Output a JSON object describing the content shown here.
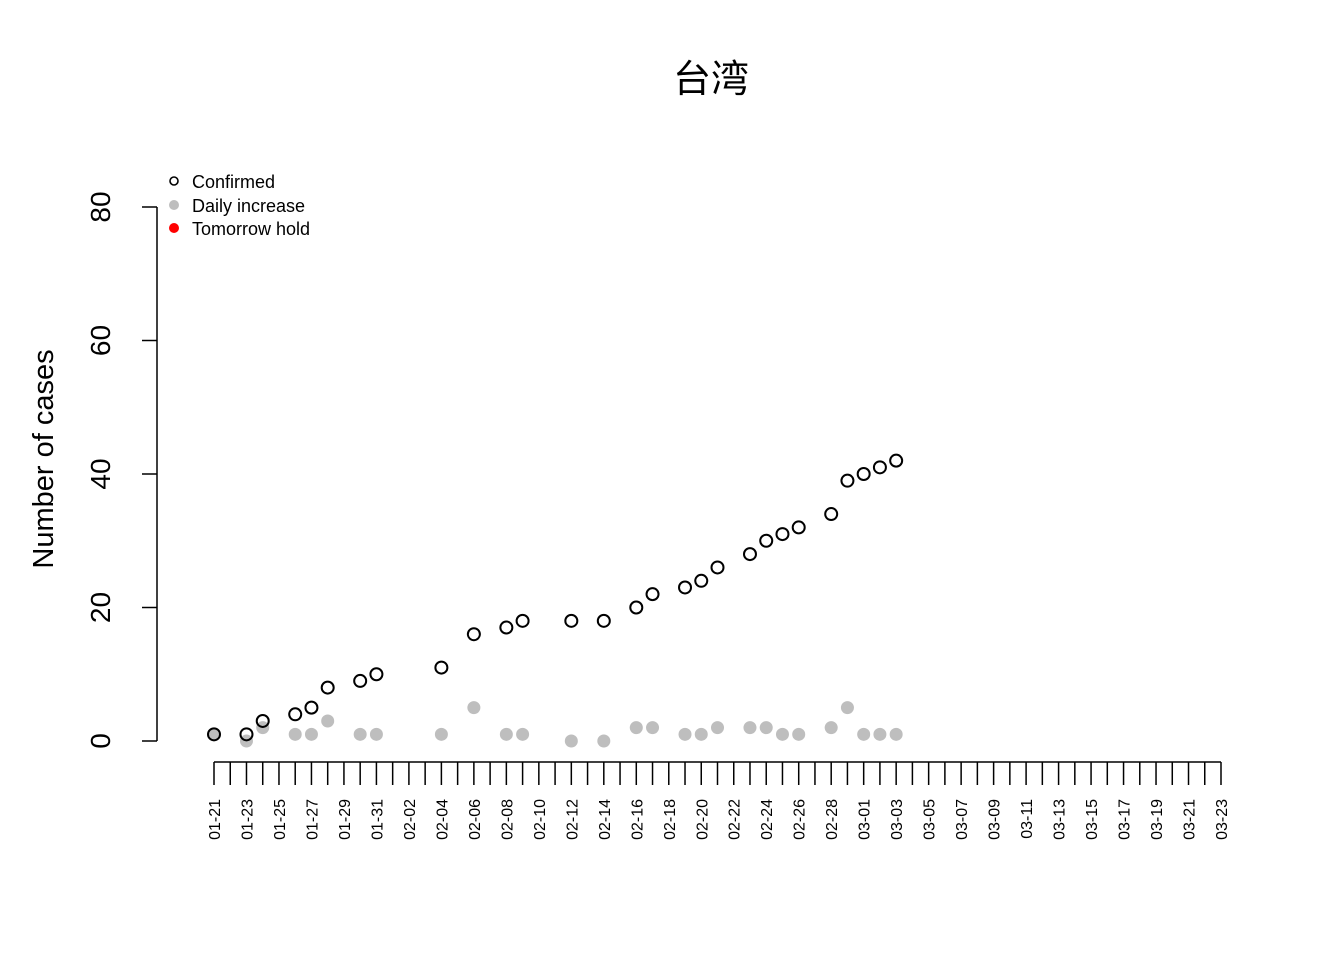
{
  "chart_data": {
    "type": "scatter",
    "title": "台湾",
    "ylabel": "Number of cases",
    "xlabel": "",
    "ylim": [
      0,
      80
    ],
    "yticks": [
      0,
      20,
      40,
      60,
      80
    ],
    "x_dates": [
      "01-21",
      "01-22",
      "01-23",
      "01-24",
      "01-25",
      "01-26",
      "01-27",
      "01-28",
      "01-29",
      "01-30",
      "01-31",
      "02-01",
      "02-02",
      "02-03",
      "02-04",
      "02-05",
      "02-06",
      "02-07",
      "02-08",
      "02-09",
      "02-10",
      "02-11",
      "02-12",
      "02-13",
      "02-14",
      "02-15",
      "02-16",
      "02-17",
      "02-18",
      "02-19",
      "02-20",
      "02-21",
      "02-22",
      "02-23",
      "02-24",
      "02-25",
      "02-26",
      "02-27",
      "02-28",
      "02-29",
      "03-01",
      "03-02",
      "03-03",
      "03-04",
      "03-05",
      "03-06",
      "03-07",
      "03-08",
      "03-09",
      "03-10",
      "03-11",
      "03-12",
      "03-13",
      "03-14",
      "03-15",
      "03-16",
      "03-17",
      "03-18",
      "03-19",
      "03-20",
      "03-21",
      "03-22",
      "03-23"
    ],
    "x_tick_labels": [
      "01-21",
      "01-23",
      "01-25",
      "01-27",
      "01-29",
      "01-31",
      "02-02",
      "02-04",
      "02-06",
      "02-08",
      "02-10",
      "02-12",
      "02-14",
      "02-16",
      "02-18",
      "02-20",
      "02-22",
      "02-24",
      "02-26",
      "02-28",
      "03-01",
      "03-03",
      "03-05",
      "03-07",
      "03-09",
      "03-11",
      "03-13",
      "03-15",
      "03-17",
      "03-19",
      "03-21",
      "03-23"
    ],
    "legend_position": "top-left",
    "series": [
      {
        "name": "Confirmed",
        "style": "open-circle",
        "color": "#000000",
        "points": [
          {
            "date": "01-21",
            "value": 1
          },
          {
            "date": "01-23",
            "value": 1
          },
          {
            "date": "01-24",
            "value": 3
          },
          {
            "date": "01-26",
            "value": 4
          },
          {
            "date": "01-27",
            "value": 5
          },
          {
            "date": "01-28",
            "value": 8
          },
          {
            "date": "01-30",
            "value": 9
          },
          {
            "date": "01-31",
            "value": 10
          },
          {
            "date": "02-04",
            "value": 11
          },
          {
            "date": "02-06",
            "value": 16
          },
          {
            "date": "02-08",
            "value": 17
          },
          {
            "date": "02-09",
            "value": 18
          },
          {
            "date": "02-12",
            "value": 18
          },
          {
            "date": "02-14",
            "value": 18
          },
          {
            "date": "02-16",
            "value": 20
          },
          {
            "date": "02-17",
            "value": 22
          },
          {
            "date": "02-19",
            "value": 23
          },
          {
            "date": "02-20",
            "value": 24
          },
          {
            "date": "02-21",
            "value": 26
          },
          {
            "date": "02-23",
            "value": 28
          },
          {
            "date": "02-24",
            "value": 30
          },
          {
            "date": "02-25",
            "value": 31
          },
          {
            "date": "02-26",
            "value": 32
          },
          {
            "date": "02-28",
            "value": 34
          },
          {
            "date": "02-29",
            "value": 39
          },
          {
            "date": "03-01",
            "value": 40
          },
          {
            "date": "03-02",
            "value": 41
          },
          {
            "date": "03-03",
            "value": 42
          }
        ]
      },
      {
        "name": "Daily increase",
        "style": "filled-circle",
        "color": "#bebebe",
        "points": [
          {
            "date": "01-21",
            "value": 1
          },
          {
            "date": "01-23",
            "value": 0
          },
          {
            "date": "01-24",
            "value": 2
          },
          {
            "date": "01-26",
            "value": 1
          },
          {
            "date": "01-27",
            "value": 1
          },
          {
            "date": "01-28",
            "value": 3
          },
          {
            "date": "01-30",
            "value": 1
          },
          {
            "date": "01-31",
            "value": 1
          },
          {
            "date": "02-04",
            "value": 1
          },
          {
            "date": "02-06",
            "value": 5
          },
          {
            "date": "02-08",
            "value": 1
          },
          {
            "date": "02-09",
            "value": 1
          },
          {
            "date": "02-12",
            "value": 0
          },
          {
            "date": "02-14",
            "value": 0
          },
          {
            "date": "02-16",
            "value": 2
          },
          {
            "date": "02-17",
            "value": 2
          },
          {
            "date": "02-19",
            "value": 1
          },
          {
            "date": "02-20",
            "value": 1
          },
          {
            "date": "02-21",
            "value": 2
          },
          {
            "date": "02-23",
            "value": 2
          },
          {
            "date": "02-24",
            "value": 2
          },
          {
            "date": "02-25",
            "value": 1
          },
          {
            "date": "02-26",
            "value": 1
          },
          {
            "date": "02-28",
            "value": 2
          },
          {
            "date": "02-29",
            "value": 5
          },
          {
            "date": "03-01",
            "value": 1
          },
          {
            "date": "03-02",
            "value": 1
          },
          {
            "date": "03-03",
            "value": 1
          }
        ]
      },
      {
        "name": "Tomorrow hold",
        "style": "filled-circle",
        "color": "#ff0000",
        "points": []
      }
    ]
  }
}
